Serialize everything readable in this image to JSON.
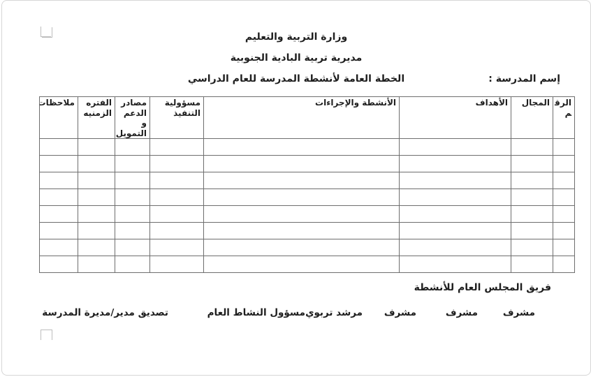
{
  "header": {
    "ministry": "وزارة التربية والتعليم",
    "directorate": "مديرية تربية البادية الجنوبية",
    "plan_title": "الخطة العامة لأنشطة المدرسة للعام الدراسي",
    "school_name_label": "إسم المدرسة :"
  },
  "table": {
    "columns": [
      {
        "id": "number",
        "label": "الرقم"
      },
      {
        "id": "field",
        "label": "المجال"
      },
      {
        "id": "objectives",
        "label": "الأهداف"
      },
      {
        "id": "activities-procedures",
        "label": "الأنشطة والإجراءات"
      },
      {
        "id": "implementation-responsibility",
        "label": "مسؤولية التنفيذ"
      },
      {
        "id": "support-funding-sources",
        "label": "مصادر الدعم و التمويل"
      },
      {
        "id": "time-period",
        "label": "الفتره الزمنيه"
      },
      {
        "id": "notes",
        "label": "ملاحظات"
      }
    ],
    "empty_row_count": 8
  },
  "footer": {
    "team_title": "فريق المجلس العام للأنشطة",
    "signatures": [
      "مشرف",
      "مشرف",
      "مشرف",
      "مرشد تربوي",
      "مسؤول النشاط العام",
      "تصديق مدير/مديرة المدرسة"
    ]
  },
  "colors": {
    "table_border": "#6e6e6e",
    "crop_mark": "#bdbdbd",
    "text": "#1e1e1e",
    "page_background": "#ffffff"
  }
}
